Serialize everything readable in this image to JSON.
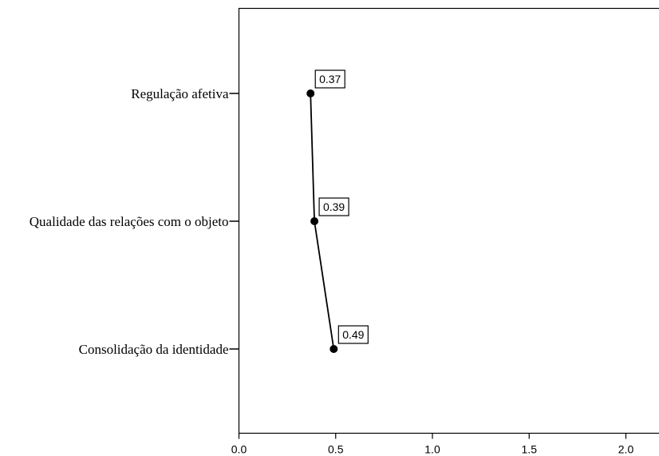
{
  "chart_data": {
    "type": "line",
    "orientation": "horizontal",
    "categories": [
      "Regulação afetiva",
      "Qualidade das relações com o objeto",
      "Consolidação da identidade"
    ],
    "values": [
      0.37,
      0.39,
      0.49
    ],
    "data_labels": [
      "0.37",
      "0.39",
      "0.49"
    ],
    "x_ticks": [
      "0.0",
      "0.5",
      "1.0",
      "1.5",
      "2.0"
    ],
    "xlim": [
      0,
      2.17
    ],
    "title": "",
    "xlabel": "",
    "ylabel": "",
    "grid": false,
    "line_color": "#000000",
    "marker_color": "#000000"
  }
}
